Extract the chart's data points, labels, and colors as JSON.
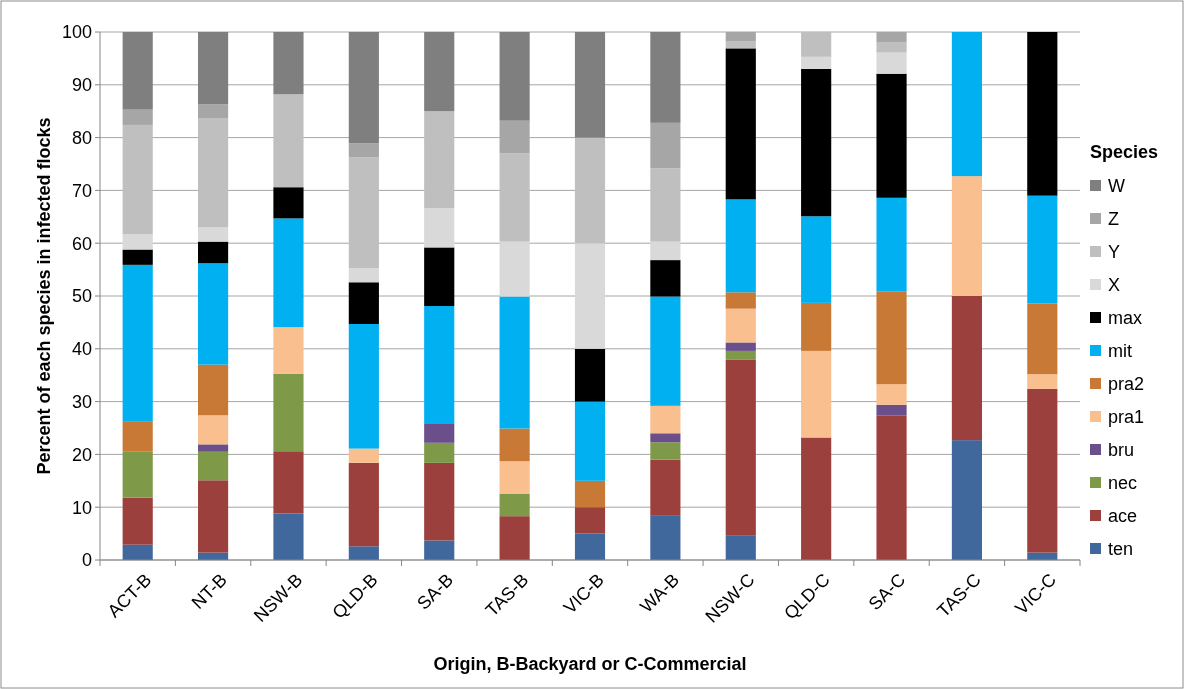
{
  "chart_data": {
    "type": "bar",
    "stacked": true,
    "ylabel": "Percent of each species in infected flocks",
    "xlabel": "Origin, B-Backyard or C-Commercial",
    "legend_title": "Species",
    "legend": "right",
    "grid": "y",
    "categories": [
      "ACT-B",
      "NT-B",
      "NSW-B",
      "QLD-B",
      "SA-B",
      "TAS-B",
      "VIC-B",
      "WA-B",
      "NSW-C",
      "QLD-C",
      "SA-C",
      "TAS-C",
      "VIC-C"
    ],
    "ylim": [
      0,
      100
    ],
    "yticks": [
      0,
      10,
      20,
      30,
      40,
      50,
      60,
      70,
      80,
      90,
      100
    ],
    "series": [
      {
        "name": "ten",
        "color": "#41689c",
        "values": [
          2.9,
          1.4,
          8.8,
          2.6,
          3.7,
          null,
          5.0,
          8.5,
          4.7,
          null,
          null,
          22.7,
          1.4
        ]
      },
      {
        "name": "ace",
        "color": "#9c403d",
        "values": [
          8.9,
          13.7,
          11.8,
          15.8,
          14.7,
          8.3,
          5.0,
          10.5,
          33.2,
          23.2,
          27.4,
          27.3,
          31.0
        ]
      },
      {
        "name": "nec",
        "color": "#7e9a48",
        "values": [
          8.7,
          5.4,
          14.7,
          null,
          3.8,
          4.2,
          null,
          3.3,
          1.7,
          null,
          null,
          null,
          null
        ]
      },
      {
        "name": "bru",
        "color": "#6a4f8a",
        "values": [
          null,
          1.4,
          null,
          null,
          3.7,
          null,
          null,
          1.7,
          1.6,
          null,
          2.0,
          null,
          null
        ]
      },
      {
        "name": "pra1",
        "color": "#f9bf8f",
        "values": [
          null,
          5.5,
          8.8,
          2.7,
          null,
          6.2,
          null,
          5.2,
          6.4,
          16.4,
          3.9,
          22.7,
          2.8
        ]
      },
      {
        "name": "pra2",
        "color": "#c97936",
        "values": [
          5.8,
          9.6,
          null,
          null,
          null,
          6.2,
          5.0,
          null,
          3.1,
          9.1,
          17.6,
          null,
          13.4
        ]
      },
      {
        "name": "mit",
        "color": "#00b0f0",
        "values": [
          29.6,
          19.2,
          20.6,
          23.6,
          22.2,
          25.0,
          15.0,
          20.7,
          17.6,
          16.4,
          17.7,
          27.3,
          20.4
        ]
      },
      {
        "name": "max",
        "color": "#000000",
        "values": [
          2.9,
          4.1,
          5.9,
          7.9,
          11.1,
          null,
          10.0,
          6.9,
          28.6,
          27.9,
          23.5,
          null,
          31.0
        ]
      },
      {
        "name": "X",
        "color": "#d9d9d9",
        "values": [
          2.9,
          2.7,
          null,
          2.7,
          7.4,
          10.4,
          20.0,
          3.5,
          null,
          2.3,
          4.0,
          null,
          null
        ]
      },
      {
        "name": "Y",
        "color": "#bfbfbf",
        "values": [
          20.7,
          20.6,
          17.6,
          21.0,
          18.4,
          16.7,
          20.0,
          13.9,
          1.4,
          4.7,
          1.9,
          null,
          null
        ]
      },
      {
        "name": "Z",
        "color": "#a6a6a6",
        "values": [
          2.9,
          2.7,
          null,
          2.6,
          null,
          6.2,
          null,
          8.6,
          1.7,
          null,
          2.0,
          null,
          null
        ]
      },
      {
        "name": "W",
        "color": "#7f7f7f",
        "values": [
          14.7,
          13.7,
          11.8,
          21.1,
          15.0,
          16.8,
          20.0,
          17.2,
          null,
          null,
          null,
          null,
          null
        ]
      }
    ]
  }
}
